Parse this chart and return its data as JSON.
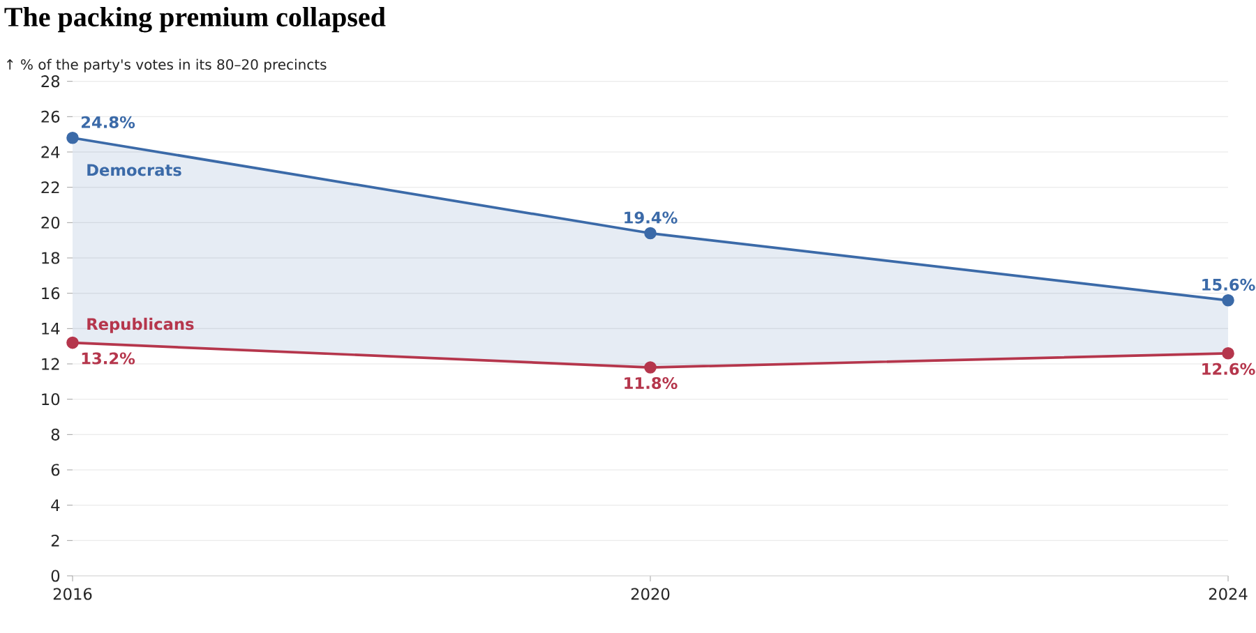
{
  "chart_data": {
    "type": "line",
    "title": "The packing premium collapsed",
    "ylabel": "↑ % of the party's votes in its 80–20 precincts",
    "x": [
      2016,
      2020,
      2024
    ],
    "series": [
      {
        "name": "Democrats",
        "color": "#3b6aa8",
        "values": [
          24.8,
          19.4,
          15.6
        ],
        "value_labels": [
          "24.8%",
          "19.4%",
          "15.6%"
        ],
        "lower": [
          13.2,
          11.8,
          12.6
        ],
        "upper": [
          24.8,
          19.4,
          15.6
        ]
      },
      {
        "name": "Republicans",
        "color": "#b5364c",
        "values": [
          13.2,
          11.8,
          12.6
        ],
        "value_labels": [
          "13.2%",
          "11.8%",
          "12.6%"
        ]
      }
    ],
    "xlim": [
      2016,
      2024
    ],
    "xticks": [
      2016,
      2020,
      2024
    ],
    "ylim": [
      0,
      28
    ],
    "yticks": [
      0,
      2,
      4,
      6,
      8,
      10,
      12,
      14,
      16,
      18,
      20,
      22,
      24,
      26,
      28
    ],
    "grid": "y",
    "marker": "circle",
    "line_style": "solid"
  }
}
